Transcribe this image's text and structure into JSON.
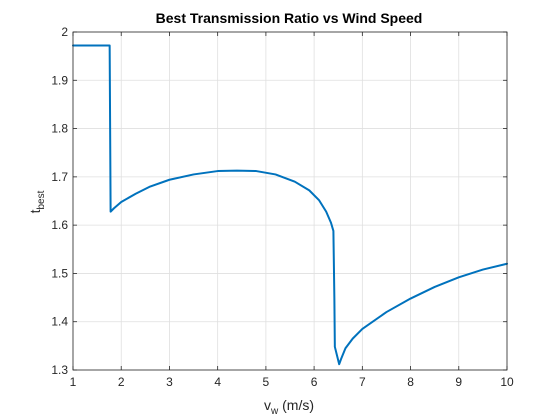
{
  "chart_data": {
    "type": "line",
    "title": "Best Transmission Ratio vs Wind Speed",
    "xlabel": {
      "main": "v",
      "sub": "w",
      "suffix": " (m/s)"
    },
    "ylabel": {
      "main": "t",
      "sub": "best"
    },
    "xlim": [
      1,
      10
    ],
    "ylim": [
      1.3,
      2.0
    ],
    "xticks": [
      1,
      2,
      3,
      4,
      5,
      6,
      7,
      8,
      9,
      10
    ],
    "yticks": [
      1.3,
      1.4,
      1.5,
      1.6,
      1.7,
      1.8,
      1.9,
      2.0
    ],
    "xtick_labels": [
      "1",
      "2",
      "3",
      "4",
      "5",
      "6",
      "7",
      "8",
      "9",
      "10"
    ],
    "ytick_labels": [
      "1.3",
      "1.4",
      "1.5",
      "1.6",
      "1.7",
      "1.8",
      "1.9",
      "2"
    ],
    "grid": true,
    "series": [
      {
        "color": "#0072BD",
        "x": [
          1.0,
          1.76,
          1.77,
          1.78,
          1.85,
          2.0,
          2.3,
          2.6,
          3.0,
          3.5,
          4.0,
          4.4,
          4.8,
          5.2,
          5.6,
          5.9,
          6.1,
          6.25,
          6.35,
          6.4,
          6.42,
          6.43,
          6.5,
          6.52,
          6.56,
          6.65,
          6.8,
          7.0,
          7.5,
          8.0,
          8.5,
          9.0,
          9.5,
          10.0
        ],
        "y": [
          1.972,
          1.972,
          1.8,
          1.628,
          1.635,
          1.648,
          1.665,
          1.68,
          1.694,
          1.705,
          1.712,
          1.713,
          1.712,
          1.705,
          1.69,
          1.672,
          1.652,
          1.628,
          1.605,
          1.588,
          1.45,
          1.348,
          1.32,
          1.312,
          1.323,
          1.345,
          1.365,
          1.385,
          1.42,
          1.448,
          1.472,
          1.492,
          1.508,
          1.52
        ]
      }
    ]
  }
}
